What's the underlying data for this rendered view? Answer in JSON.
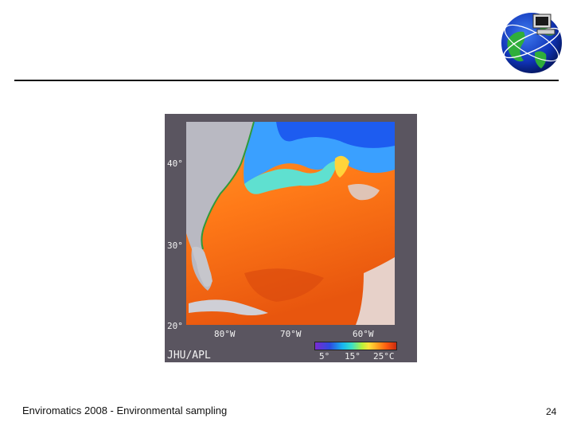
{
  "figure": {
    "latitude_labels": [
      "40°",
      "30°",
      "20°"
    ],
    "longitude_labels": [
      "80°W",
      "70°W",
      "60°W"
    ],
    "credit": "JHU/APL",
    "colorbar_labels": [
      "5°",
      "15°",
      "25°C"
    ]
  },
  "footer": {
    "text": "Enviromatics 2008 - Environmental sampling",
    "page_number": "24"
  },
  "icons": {
    "logo": "globe-computer-icon"
  },
  "colors": {
    "rule": "#111111",
    "figure_frame": "#5a5560"
  }
}
